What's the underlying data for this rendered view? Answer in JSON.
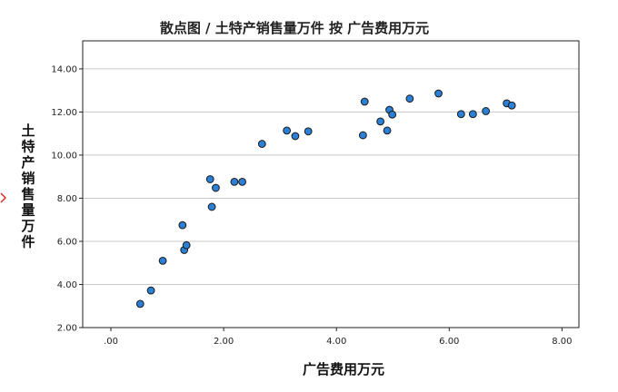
{
  "chart_data": {
    "type": "scatter",
    "title": "散点图 / 土特产销售量万件 按 广告费用万元",
    "xlabel": "广告费用万元",
    "ylabel": "土特产销售量万件",
    "xlim": [
      -0.5,
      8.3
    ],
    "ylim": [
      2.0,
      15.3
    ],
    "xticks": [
      0,
      2,
      4,
      6,
      8
    ],
    "xtick_labels": [
      ".00",
      "2.00",
      "4.00",
      "6.00",
      "8.00"
    ],
    "yticks": [
      2,
      4,
      6,
      8,
      10,
      12,
      14
    ],
    "ytick_labels": [
      "2.00",
      "4.00",
      "6.00",
      "8.00",
      "10.00",
      "12.00",
      "14.00"
    ],
    "grid": "horizontal",
    "marker_color": "#2b7fd4",
    "marker_edge_color": "#1a1a1a",
    "gridline_color": "#c8c8c8",
    "points": [
      {
        "x": 0.52,
        "y": 3.1
      },
      {
        "x": 0.71,
        "y": 3.72
      },
      {
        "x": 0.92,
        "y": 5.1
      },
      {
        "x": 1.27,
        "y": 6.75
      },
      {
        "x": 1.3,
        "y": 5.6
      },
      {
        "x": 1.34,
        "y": 5.82
      },
      {
        "x": 1.76,
        "y": 8.88
      },
      {
        "x": 1.79,
        "y": 7.6
      },
      {
        "x": 1.86,
        "y": 8.48
      },
      {
        "x": 2.19,
        "y": 8.76
      },
      {
        "x": 2.33,
        "y": 8.76
      },
      {
        "x": 2.68,
        "y": 10.52
      },
      {
        "x": 3.12,
        "y": 11.14
      },
      {
        "x": 3.27,
        "y": 10.88
      },
      {
        "x": 3.5,
        "y": 11.1
      },
      {
        "x": 4.47,
        "y": 10.92
      },
      {
        "x": 4.5,
        "y": 12.48
      },
      {
        "x": 4.78,
        "y": 11.56
      },
      {
        "x": 4.9,
        "y": 11.14
      },
      {
        "x": 4.94,
        "y": 12.1
      },
      {
        "x": 4.99,
        "y": 11.88
      },
      {
        "x": 5.3,
        "y": 12.62
      },
      {
        "x": 5.81,
        "y": 12.86
      },
      {
        "x": 6.21,
        "y": 11.9
      },
      {
        "x": 6.42,
        "y": 11.9
      },
      {
        "x": 6.65,
        "y": 12.04
      },
      {
        "x": 7.02,
        "y": 12.4
      },
      {
        "x": 7.11,
        "y": 12.3
      }
    ]
  }
}
